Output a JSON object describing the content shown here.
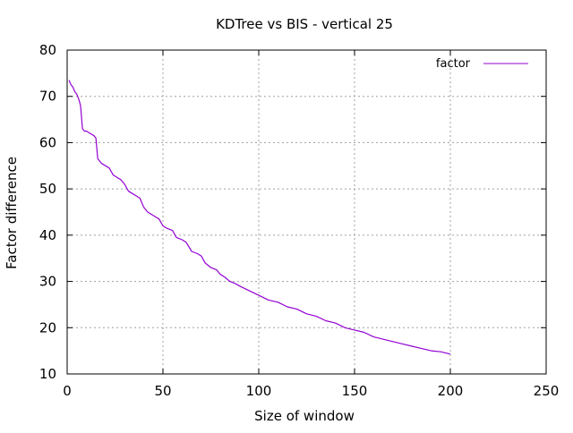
{
  "chart_data": {
    "type": "line",
    "title": "KDTree vs BIS - vertical 25",
    "xlabel": "Size of window",
    "ylabel": "Factor difference",
    "xlim": [
      0,
      250
    ],
    "ylim": [
      10,
      80
    ],
    "xticks": [
      "0",
      "50",
      "100",
      "150",
      "200",
      "250"
    ],
    "yticks": [
      "10",
      "20",
      "30",
      "40",
      "50",
      "60",
      "70",
      "80"
    ],
    "grid": true,
    "legend": "top-right",
    "series": [
      {
        "name": "factor",
        "color": "#9400d3",
        "x": [
          1,
          2,
          3,
          4,
          5,
          6,
          7,
          8,
          9,
          10,
          12,
          14,
          15,
          16,
          18,
          20,
          22,
          24,
          26,
          28,
          30,
          32,
          34,
          36,
          38,
          40,
          42,
          44,
          46,
          48,
          50,
          52,
          55,
          57,
          60,
          62,
          65,
          68,
          70,
          72,
          75,
          78,
          80,
          82,
          85,
          88,
          90,
          95,
          100,
          105,
          110,
          115,
          120,
          125,
          130,
          135,
          140,
          145,
          150,
          155,
          160,
          165,
          170,
          175,
          180,
          185,
          190,
          195,
          200
        ],
        "y": [
          73.5,
          72.5,
          72,
          71,
          70.5,
          69.5,
          68,
          63,
          62.5,
          62.5,
          62,
          61.5,
          61,
          56.5,
          55.5,
          55,
          54.5,
          53,
          52.5,
          52,
          51,
          49.5,
          49,
          48.5,
          48,
          46,
          45,
          44.5,
          44,
          43.5,
          42,
          41.5,
          41,
          39.5,
          39,
          38.5,
          36.5,
          36,
          35.5,
          34,
          33,
          32.5,
          31.5,
          31,
          30,
          29.5,
          29,
          28,
          27,
          26,
          25.5,
          24.5,
          24,
          23,
          22.5,
          21.5,
          21,
          20,
          19.5,
          19,
          18,
          17.5,
          17,
          16.5,
          16,
          15.5,
          15,
          14.8,
          14.3
        ]
      }
    ]
  }
}
